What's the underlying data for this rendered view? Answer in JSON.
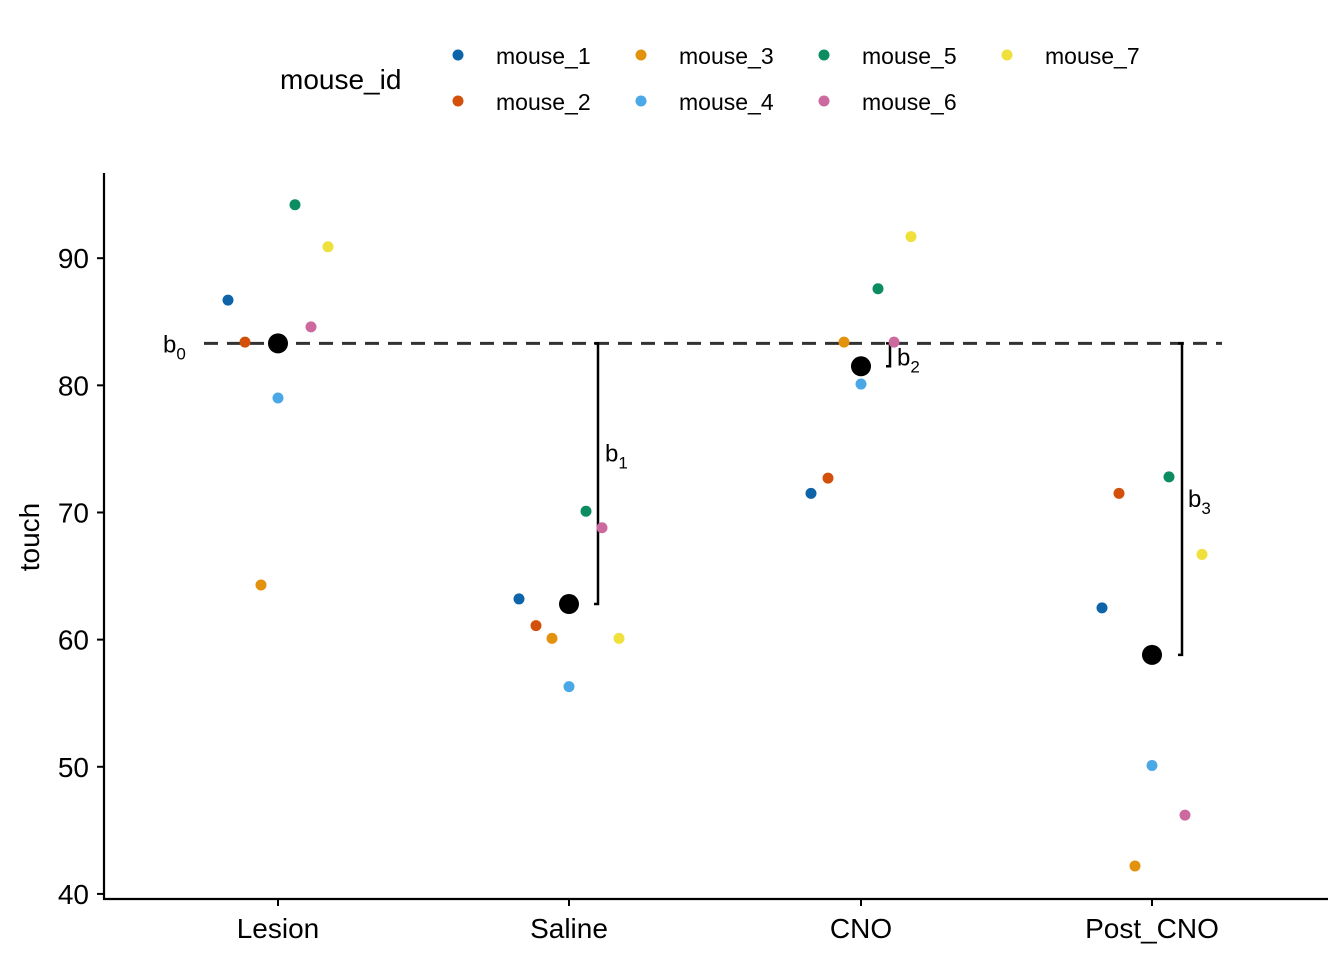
{
  "chart_data": {
    "type": "scatter",
    "xlabel": "",
    "ylabel": "touch",
    "categories": [
      "Lesion",
      "Saline",
      "CNO",
      "Post_CNO"
    ],
    "yticks": [
      40,
      50,
      60,
      70,
      80,
      90
    ],
    "ylim": [
      39.6,
      96.7
    ],
    "grid": false,
    "legend": {
      "title": "mouse_id",
      "position": "top",
      "entries": [
        {
          "name": "mouse_1",
          "color": "#0E64A9"
        },
        {
          "name": "mouse_2",
          "color": "#D2500A"
        },
        {
          "name": "mouse_3",
          "color": "#E3920E"
        },
        {
          "name": "mouse_4",
          "color": "#4AA8E6"
        },
        {
          "name": "mouse_5",
          "color": "#0B8C61"
        },
        {
          "name": "mouse_6",
          "color": "#CC6AA0"
        },
        {
          "name": "mouse_7",
          "color": "#EFE03C"
        }
      ]
    },
    "series": [
      {
        "name": "mouse_1",
        "values": [
          86.7,
          63.2,
          71.5,
          62.5
        ]
      },
      {
        "name": "mouse_2",
        "values": [
          83.4,
          61.1,
          72.7,
          71.5
        ]
      },
      {
        "name": "mouse_3",
        "values": [
          64.3,
          60.1,
          83.4,
          42.2
        ]
      },
      {
        "name": "mouse_4",
        "values": [
          79.0,
          56.3,
          80.1,
          50.1
        ]
      },
      {
        "name": "mouse_5",
        "values": [
          94.2,
          70.1,
          87.6,
          72.8
        ]
      },
      {
        "name": "mouse_6",
        "values": [
          84.6,
          68.8,
          83.4,
          46.2
        ]
      },
      {
        "name": "mouse_7",
        "values": [
          90.9,
          60.1,
          91.7,
          66.7
        ]
      }
    ],
    "means": {
      "color": "#000000",
      "values": [
        83.3,
        62.8,
        81.5,
        58.8
      ]
    },
    "reference_line": {
      "y": 83.3,
      "style": "dashed",
      "color": "#333333"
    },
    "annotations": [
      {
        "base": "b",
        "sub": "0"
      },
      {
        "base": "b",
        "sub": "1"
      },
      {
        "base": "b",
        "sub": "2"
      },
      {
        "base": "b",
        "sub": "3"
      }
    ]
  }
}
